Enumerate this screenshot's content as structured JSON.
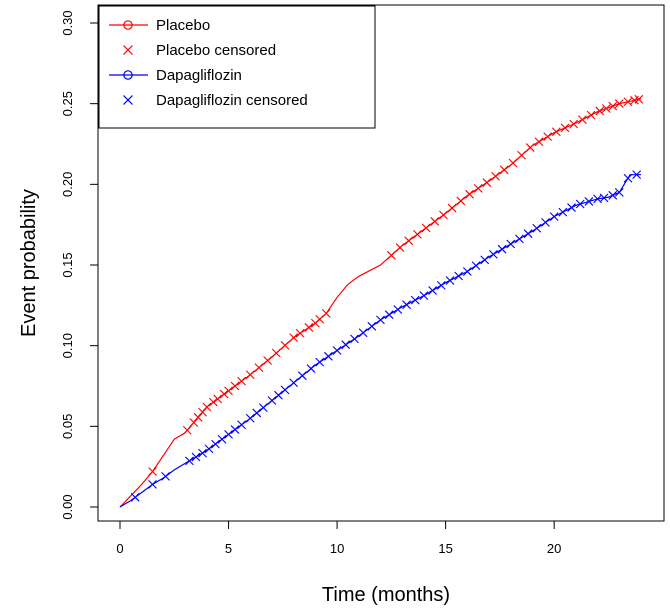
{
  "chart_data": {
    "type": "line",
    "title": "",
    "xlabel": "Time (months)",
    "ylabel": "Event probability",
    "xlim": [
      0,
      24
    ],
    "ylim": [
      0,
      0.3
    ],
    "x_ticks": [
      0,
      5,
      10,
      15,
      20
    ],
    "y_ticks": [
      0.0,
      0.05,
      0.1,
      0.15,
      0.2,
      0.25,
      0.3
    ],
    "y_tick_labels": [
      "0.00",
      "0.05",
      "0.10",
      "0.15",
      "0.20",
      "0.25",
      "0.30"
    ],
    "grid": false,
    "legend_position": "top-left",
    "legend": [
      {
        "label": "Placebo",
        "color": "#ff0000",
        "marker": "circle-line"
      },
      {
        "label": "Placebo censored",
        "color": "#ff0000",
        "marker": "cross"
      },
      {
        "label": "Dapagliflozin",
        "color": "#0000ff",
        "marker": "circle-line"
      },
      {
        "label": "Dapagliflozin censored",
        "color": "#0000ff",
        "marker": "cross"
      }
    ],
    "series": [
      {
        "name": "Placebo",
        "color": "#ff0000",
        "points": [
          [
            0,
            0
          ],
          [
            0.5,
            0.007
          ],
          [
            1,
            0.014
          ],
          [
            1.5,
            0.022
          ],
          [
            2,
            0.032
          ],
          [
            2.5,
            0.042
          ],
          [
            3,
            0.046
          ],
          [
            3.5,
            0.054
          ],
          [
            4,
            0.062
          ],
          [
            5,
            0.072
          ],
          [
            6,
            0.082
          ],
          [
            7,
            0.093
          ],
          [
            8,
            0.105
          ],
          [
            9,
            0.114
          ],
          [
            9.5,
            0.12
          ],
          [
            10,
            0.13
          ],
          [
            10.5,
            0.138
          ],
          [
            11,
            0.143
          ],
          [
            12,
            0.15
          ],
          [
            13,
            0.162
          ],
          [
            14,
            0.172
          ],
          [
            15,
            0.182
          ],
          [
            16,
            0.193
          ],
          [
            17,
            0.202
          ],
          [
            18,
            0.212
          ],
          [
            19,
            0.224
          ],
          [
            20,
            0.232
          ],
          [
            21,
            0.238
          ],
          [
            22,
            0.245
          ],
          [
            23,
            0.25
          ],
          [
            24,
            0.253
          ]
        ],
        "censored_x": [
          1.5,
          3.1,
          3.4,
          3.6,
          3.8,
          4.0,
          4.3,
          4.5,
          4.8,
          5.0,
          5.3,
          5.6,
          6.0,
          6.4,
          6.8,
          7.2,
          7.6,
          8.0,
          8.3,
          8.7,
          9.0,
          9.2,
          9.5,
          12.5,
          12.9,
          13.3,
          13.7,
          14.1,
          14.5,
          14.9,
          15.3,
          15.7,
          16.1,
          16.5,
          16.9,
          17.3,
          17.7,
          18.1,
          18.5,
          18.9,
          19.3,
          19.7,
          20.1,
          20.5,
          20.9,
          21.3,
          21.7,
          22.1,
          22.4,
          22.7,
          23.0,
          23.4,
          23.7,
          23.9
        ]
      },
      {
        "name": "Dapagliflozin",
        "color": "#0000ff",
        "points": [
          [
            0,
            0
          ],
          [
            0.5,
            0.004
          ],
          [
            0.7,
            0.006
          ],
          [
            1,
            0.009
          ],
          [
            1.5,
            0.014
          ],
          [
            2,
            0.018
          ],
          [
            2.5,
            0.023
          ],
          [
            3,
            0.027
          ],
          [
            4,
            0.035
          ],
          [
            5,
            0.045
          ],
          [
            6,
            0.055
          ],
          [
            7,
            0.066
          ],
          [
            8,
            0.077
          ],
          [
            9,
            0.088
          ],
          [
            10,
            0.097
          ],
          [
            11,
            0.106
          ],
          [
            12,
            0.116
          ],
          [
            13,
            0.124
          ],
          [
            14,
            0.131
          ],
          [
            15,
            0.139
          ],
          [
            16,
            0.146
          ],
          [
            17,
            0.155
          ],
          [
            18,
            0.163
          ],
          [
            19,
            0.171
          ],
          [
            20,
            0.18
          ],
          [
            21,
            0.187
          ],
          [
            22,
            0.191
          ],
          [
            22.5,
            0.192
          ],
          [
            23,
            0.195
          ],
          [
            23.5,
            0.206
          ],
          [
            24,
            0.206
          ]
        ],
        "censored_x": [
          0.7,
          1.5,
          2.1,
          3.2,
          3.5,
          3.8,
          4.1,
          4.4,
          4.7,
          5.0,
          5.3,
          5.6,
          6.0,
          6.3,
          6.6,
          7.0,
          7.3,
          7.6,
          8.0,
          8.4,
          8.8,
          9.2,
          9.6,
          10.0,
          10.4,
          10.8,
          11.2,
          11.6,
          12.0,
          12.4,
          12.8,
          13.2,
          13.6,
          14.0,
          14.4,
          14.8,
          15.2,
          15.6,
          16.0,
          16.4,
          16.8,
          17.2,
          17.6,
          18.0,
          18.4,
          18.8,
          19.2,
          19.6,
          20.0,
          20.4,
          20.8,
          21.2,
          21.6,
          22.0,
          22.3,
          22.7,
          23.0,
          23.4,
          23.8
        ]
      }
    ]
  }
}
